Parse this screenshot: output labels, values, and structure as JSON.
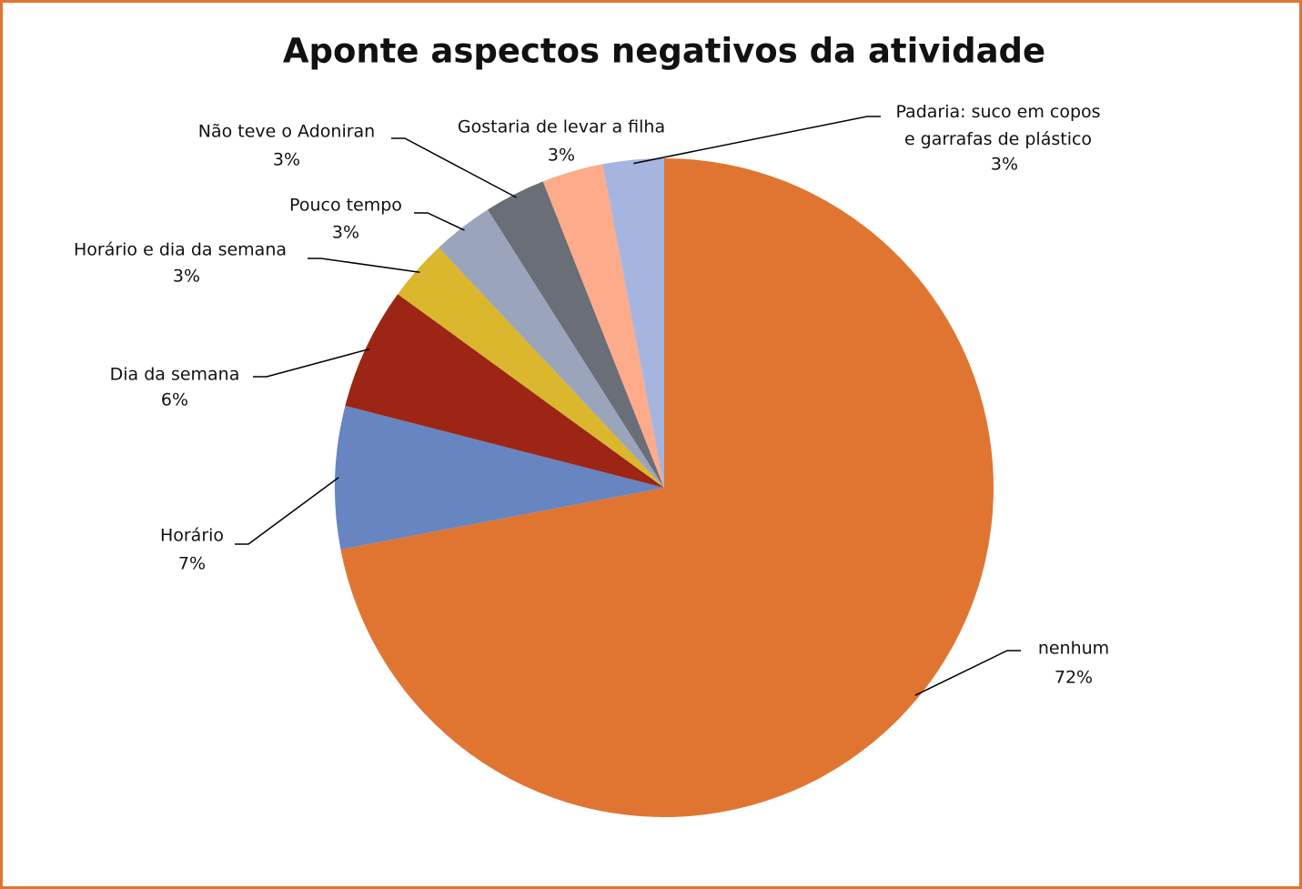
{
  "chart_data": {
    "type": "pie",
    "title": "Aponte aspectos negativos da atividade",
    "categories": [
      "nenhum",
      "Horário",
      "Dia da semana",
      "Horário e dia da semana",
      "Pouco tempo",
      "Não teve o Adoniran",
      "Gostaria de levar a filha",
      "Padaria: suco em copos\ne garrafas de plástico"
    ],
    "values": [
      72,
      7,
      6,
      3,
      3,
      3,
      3,
      3
    ],
    "value_labels": [
      "72%",
      "7%",
      "6%",
      "3%",
      "3%",
      "3%",
      "3%",
      "3%"
    ],
    "colors": [
      "#e07531",
      "#6685c1",
      "#9c2515",
      "#dab72c",
      "#9aa4bb",
      "#6a6e76",
      "#fdab8a",
      "#a5b5e0"
    ]
  }
}
